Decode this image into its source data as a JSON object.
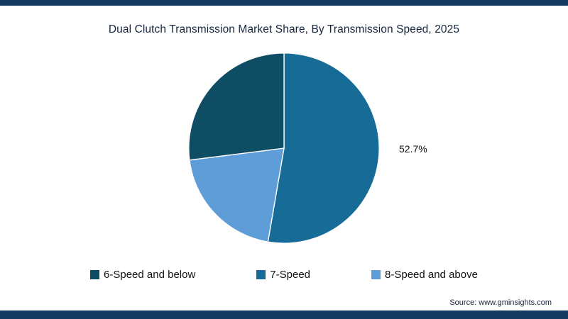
{
  "title": "Dual Clutch Transmission Market Share, By Transmission Speed, 2025",
  "source": "Source: www.gminsights.com",
  "colors": {
    "frame": "#153a5f",
    "background": "#ffffff",
    "title_text": "#14243c",
    "annotation_text": "#111111"
  },
  "chart_data": {
    "type": "pie",
    "title": "Dual Clutch Transmission Market Share, By Transmission Speed, 2025",
    "categories": [
      "6-Speed and below",
      "7-Speed",
      "8-Speed and above"
    ],
    "values": [
      27.0,
      52.7,
      20.3
    ],
    "colors": [
      "#0e4d64",
      "#166c96",
      "#5f9dd8"
    ],
    "draw_order": [
      1,
      2,
      0
    ],
    "start_angle_deg": 0,
    "legend_position": "bottom",
    "annotations": [
      {
        "slice": "7-Speed",
        "text": "52.7%"
      }
    ]
  }
}
